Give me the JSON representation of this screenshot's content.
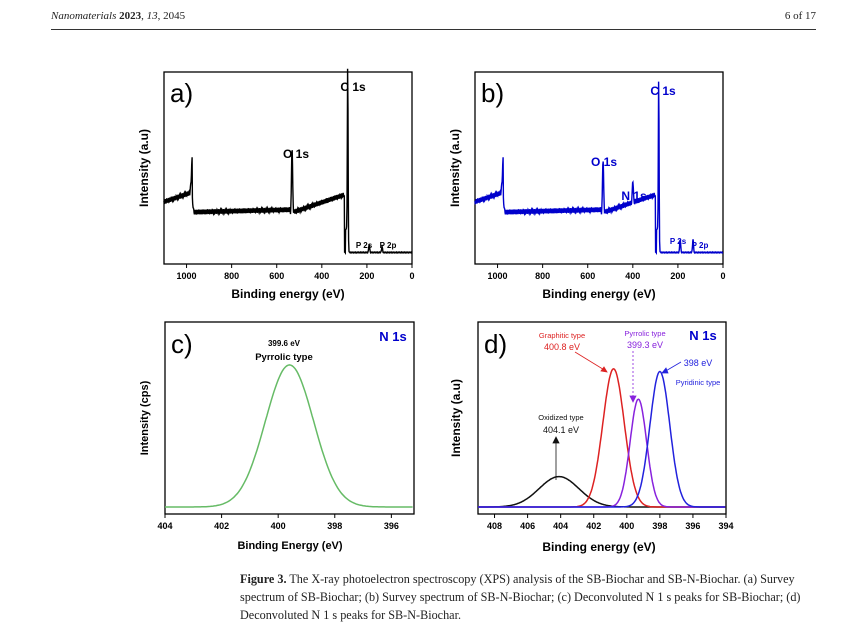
{
  "header": {
    "journal": "Nanomaterials",
    "year": "2023",
    "volume": "13",
    "article": "2045",
    "page": "6 of 17"
  },
  "chart_data": [
    {
      "id": "a",
      "type": "line",
      "panel_label": "a)",
      "xlabel": "Binding energy (eV)",
      "ylabel": "Intensity (a.u)",
      "xlim": [
        1100,
        0
      ],
      "xticks": [
        1000,
        800,
        600,
        400,
        200,
        0
      ],
      "color": "#000000",
      "peaks": [
        {
          "label": "C 1s",
          "x": 285
        },
        {
          "label": "O 1s",
          "x": 532
        },
        {
          "label": "P 2s",
          "x": 190
        },
        {
          "label": "P 2p",
          "x": 133
        }
      ]
    },
    {
      "id": "b",
      "type": "line",
      "panel_label": "b)",
      "xlabel": "Binding energy (eV)",
      "ylabel": "Intensity (a.u)",
      "xlim": [
        1100,
        0
      ],
      "xticks": [
        1000,
        800,
        600,
        400,
        200,
        0
      ],
      "color": "#0000cc",
      "peaks": [
        {
          "label": "C 1s",
          "x": 285
        },
        {
          "label": "O 1s",
          "x": 532
        },
        {
          "label": "N 1s",
          "x": 400
        },
        {
          "label": "P 2s",
          "x": 190
        },
        {
          "label": "P 2p",
          "x": 133
        }
      ]
    },
    {
      "id": "c",
      "type": "line",
      "panel_label": "c)",
      "title": "N 1s",
      "xlabel": "Binding Energy (eV)",
      "ylabel": "Intensity (cps)",
      "xlim": [
        404,
        395.2
      ],
      "xticks": [
        404,
        402,
        400,
        398,
        396
      ],
      "series": [
        {
          "name": "Pyrrolic type",
          "center": 399.6,
          "sigma": 0.85,
          "amplitude": 1.0,
          "color": "#66bb66"
        }
      ],
      "annotations": [
        {
          "text": "399.6 eV"
        },
        {
          "text": "Pyrrolic type"
        }
      ]
    },
    {
      "id": "d",
      "type": "line",
      "panel_label": "d)",
      "title": "N 1s",
      "xlabel": "Binding energy (eV)",
      "ylabel": "Intensity (a.u)",
      "xlim": [
        409,
        394
      ],
      "xticks": [
        408,
        406,
        404,
        402,
        400,
        398,
        396,
        394
      ],
      "series": [
        {
          "name": "Oxidized type",
          "center": 404.1,
          "sigma": 1.2,
          "amplitude": 0.22,
          "color": "#111111"
        },
        {
          "name": "Graphitic type",
          "center": 400.8,
          "sigma": 0.65,
          "amplitude": 1.0,
          "color": "#dd2222"
        },
        {
          "name": "Pyrrolic type",
          "center": 399.3,
          "sigma": 0.5,
          "amplitude": 0.78,
          "color": "#8822dd"
        },
        {
          "name": "Pyridinic type",
          "center": 398.0,
          "sigma": 0.6,
          "amplitude": 0.98,
          "color": "#2222dd"
        }
      ],
      "annotations": [
        {
          "title": "Graphitic type",
          "value": "400.8 eV"
        },
        {
          "title": "Pyrrolic type",
          "value": "399.3 eV"
        },
        {
          "title": "Pyridinic type",
          "value": "398 eV"
        },
        {
          "title": "Oxidized type",
          "value": "404.1 eV"
        }
      ]
    }
  ],
  "caption": {
    "label": "Figure 3.",
    "text": "The X-ray photoelectron spectroscopy (XPS) analysis of the SB-Biochar and SB-N-Biochar. (a) Survey spectrum of SB-Biochar; (b) Survey spectrum of SB-N-Biochar; (c) Deconvoluted N 1 s peaks for SB-Biochar; (d) Deconvoluted N 1 s peaks for SB-N-Biochar."
  }
}
